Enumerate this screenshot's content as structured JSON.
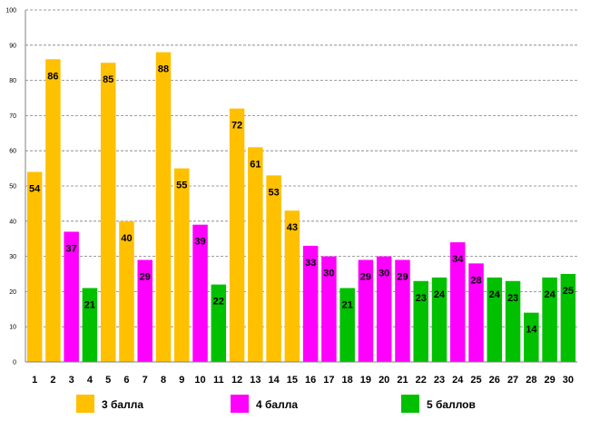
{
  "chart_data": {
    "type": "bar",
    "title": "",
    "xlabel": "",
    "ylabel": "",
    "ylim": [
      0,
      100
    ],
    "yticks": [
      0,
      10,
      20,
      30,
      40,
      50,
      60,
      70,
      80,
      90,
      100
    ],
    "grid": true,
    "categories": [
      "1",
      "2",
      "3",
      "4",
      "5",
      "6",
      "7",
      "8",
      "9",
      "10",
      "11",
      "12",
      "13",
      "14",
      "15",
      "16",
      "17",
      "18",
      "19",
      "20",
      "21",
      "22",
      "23",
      "24",
      "25",
      "26",
      "27",
      "28",
      "29",
      "30"
    ],
    "values": [
      54,
      86,
      37,
      21,
      85,
      40,
      29,
      88,
      55,
      39,
      22,
      72,
      61,
      53,
      43,
      33,
      30,
      21,
      29,
      30,
      29,
      23,
      24,
      34,
      28,
      24,
      23,
      14,
      24,
      25
    ],
    "groups": [
      "g3",
      "g3",
      "g4",
      "g5",
      "g3",
      "g3",
      "g4",
      "g3",
      "g3",
      "g4",
      "g5",
      "g3",
      "g3",
      "g3",
      "g3",
      "g4",
      "g4",
      "g5",
      "g4",
      "g4",
      "g4",
      "g5",
      "g5",
      "g4",
      "g4",
      "g5",
      "g5",
      "g5",
      "g5",
      "g5"
    ],
    "legend": [
      {
        "key": "g3",
        "label": "3 балла",
        "color": "#FFC000"
      },
      {
        "key": "g4",
        "label": "4 балла",
        "color": "#FF00FF"
      },
      {
        "key": "g5",
        "label": "5 баллов",
        "color": "#00C000"
      }
    ],
    "legend_position": "bottom"
  }
}
